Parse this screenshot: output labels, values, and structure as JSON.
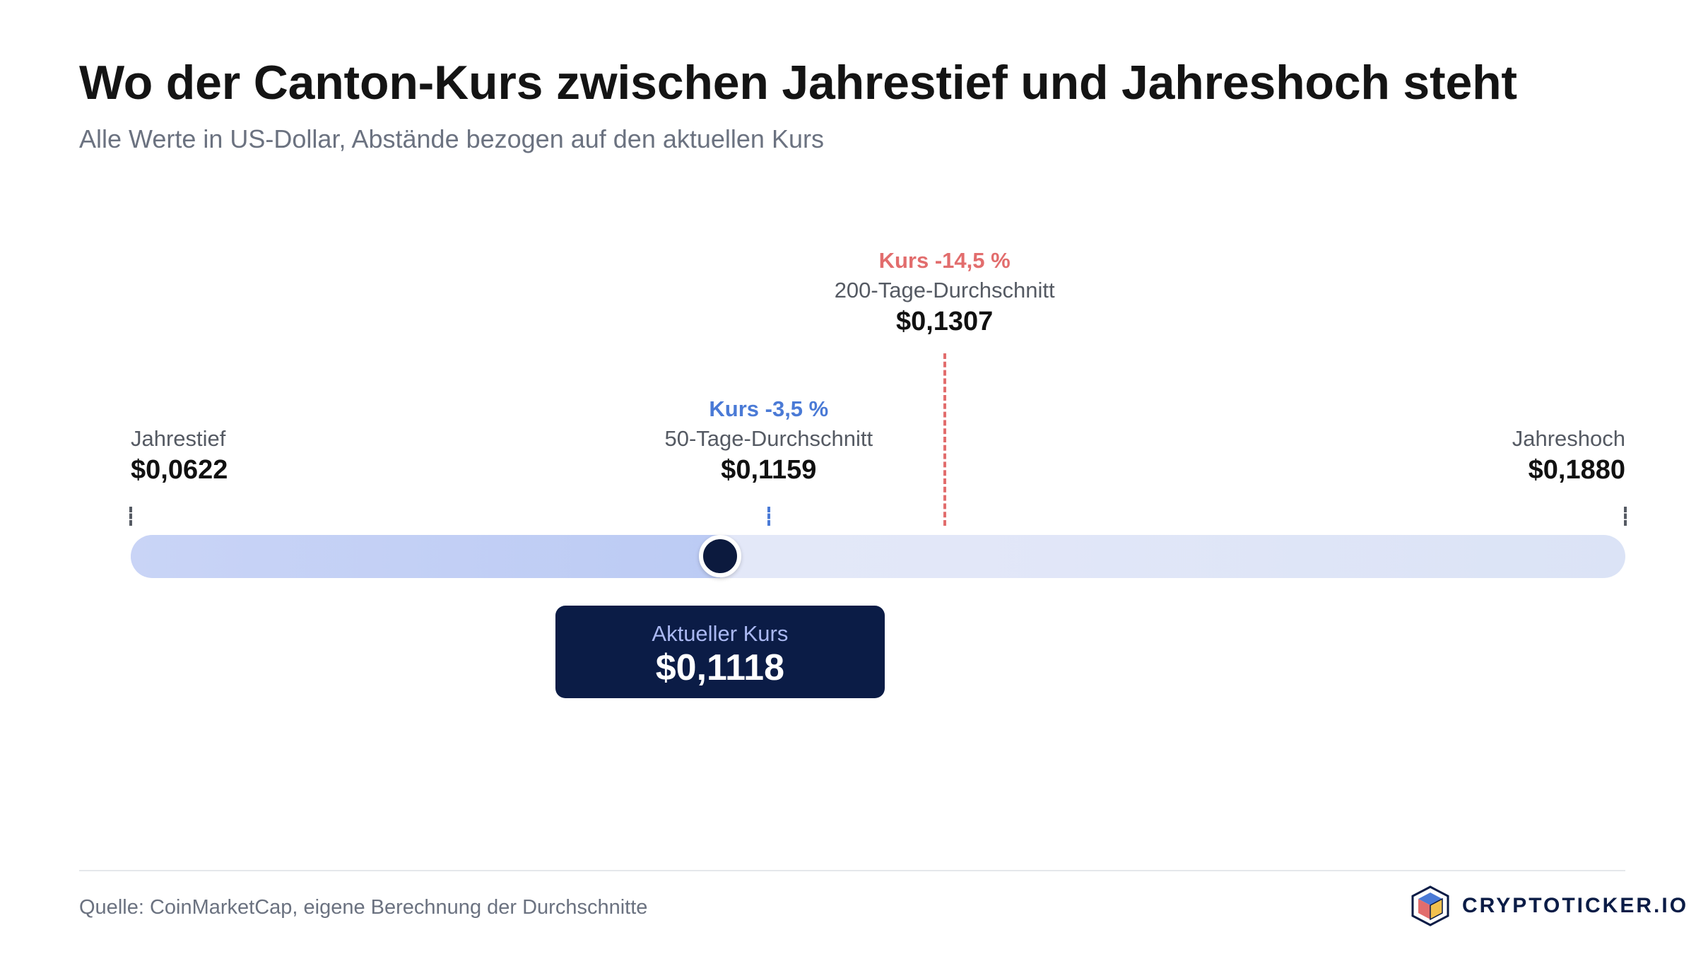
{
  "header": {
    "title": "Wo der Canton-Kurs zwischen Jahrestief und Jahreshoch steht",
    "subtitle": "Alle Werte in US-Dollar, Abstände bezogen auf den aktuellen Kurs"
  },
  "chart_data": {
    "type": "range-bar",
    "title": "Wo der Canton-Kurs zwischen Jahrestief und Jahreshoch steht",
    "subtitle": "Alle Werte in US-Dollar, Abstände bezogen auf den aktuellen Kurs",
    "min": 0.0622,
    "max": 0.188,
    "current": 0.1118,
    "markers": {
      "low": {
        "name": "Jahrestief",
        "value": 0.0622,
        "value_label": "$0,0622"
      },
      "high": {
        "name": "Jahreshoch",
        "value": 0.188,
        "value_label": "$0,1880"
      },
      "ma50": {
        "name": "50-Tage-Durchschnitt",
        "value": 0.1159,
        "value_label": "$0,1159",
        "delta_label": "Kurs -3,5 %",
        "color": "#4a7ad6"
      },
      "ma200": {
        "name": "200-Tage-Durchschnitt",
        "value": 0.1307,
        "value_label": "$0,1307",
        "delta_label": "Kurs -14,5 %",
        "color": "#e26d6d"
      }
    },
    "current_marker": {
      "name": "Aktueller Kurs",
      "value_label": "$0,1118"
    }
  },
  "footer": {
    "source": "Quelle: CoinMarketCap, eigene Berechnung der Durchschnitte",
    "brand": "CRYPTOTICKER.IO"
  },
  "colors": {
    "low_high_tick": "#555a63",
    "knob": "#0c1a3e",
    "current_box": "#0b1c46",
    "logo_red": "#e26d6d",
    "logo_blue": "#4a7ad6",
    "logo_yellow": "#f2c14e"
  },
  "icons": {
    "brand_logo": "cube-logo-icon"
  }
}
